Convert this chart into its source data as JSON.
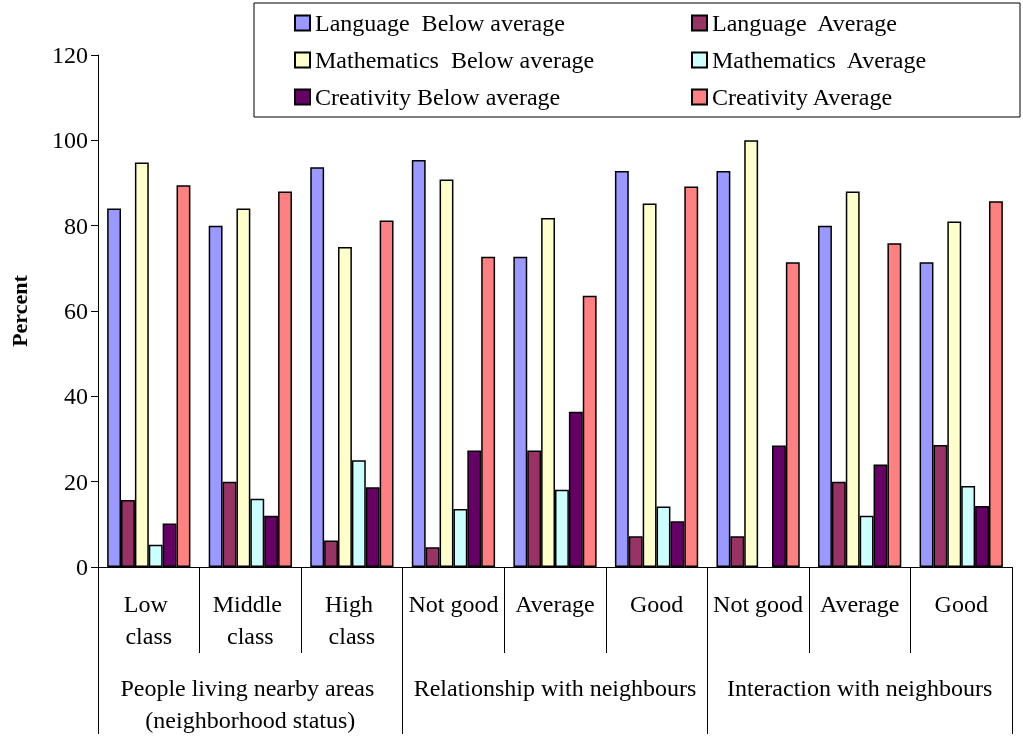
{
  "chart_data": {
    "type": "bar",
    "ylabel": "Percent",
    "categories": [
      "Low class",
      "Middle class",
      "High class",
      "Not good",
      "Average",
      "Good",
      "Not good",
      "Average",
      "Good"
    ],
    "annotations": [
      "People living nearby areas (neighborhood status)",
      "Relationship with neighbours",
      "Interaction with neighbours"
    ],
    "series": [
      {
        "name": "Language  Below average",
        "color": "#9999ff",
        "values": [
          84,
          80,
          93.7,
          95.4,
          72.7,
          92.8,
          92.8,
          80,
          71.4
        ]
      },
      {
        "name": "Language  Average",
        "color": "#993366",
        "values": [
          15.7,
          20,
          6.2,
          4.6,
          27.3,
          7.2,
          7.2,
          20,
          28.6
        ]
      },
      {
        "name": "Mathematics  Below average",
        "color": "#ffffcc",
        "values": [
          94.8,
          84,
          75,
          90.8,
          81.8,
          85.2,
          100,
          88,
          81
        ]
      },
      {
        "name": "Mathematics  Average",
        "color": "#ccffff",
        "values": [
          5.2,
          16,
          25,
          13.6,
          18.1,
          14.2,
          null,
          12,
          19
        ]
      },
      {
        "name": "Creativity Below average",
        "color": "#660066",
        "values": [
          10.2,
          12,
          18.7,
          27.3,
          36.4,
          10.7,
          28.5,
          24,
          14.3
        ]
      },
      {
        "name": "Creativity Average",
        "color": "#ff8080",
        "values": [
          89.5,
          88,
          81.2,
          72.7,
          63.6,
          89.2,
          71.4,
          75.9,
          85.7
        ]
      }
    ],
    "ylim": [
      0,
      120
    ],
    "yticks": [
      0,
      20,
      40,
      60,
      80,
      100,
      120
    ],
    "grid": false,
    "legend": "top right"
  }
}
